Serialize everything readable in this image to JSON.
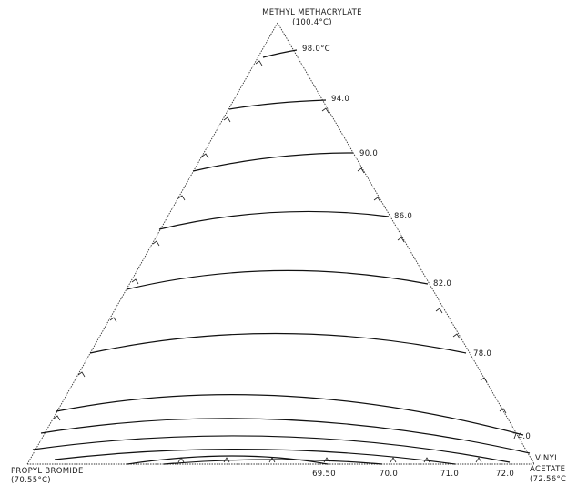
{
  "vertices": {
    "top": {
      "name": "METHYL METHACRYLATE",
      "bp": "(100.4°C)"
    },
    "left": {
      "name": "PROPYL BROMIDE",
      "bp": "(70.55°C)"
    },
    "right": {
      "name_line1": "VINYL",
      "name_line2": "ACETATE",
      "bp": "(72.56°C)"
    }
  },
  "isotherm_labels": [
    "98.0°C",
    "94.0",
    "90.0",
    "86.0",
    "82.0",
    "78.0",
    "74.0"
  ],
  "base_labels": [
    "69.50",
    "70.0",
    "71.0",
    "72.0"
  ],
  "colors": {
    "line": "#111111",
    "text": "#1a1a1a",
    "background": "#ffffff"
  }
}
